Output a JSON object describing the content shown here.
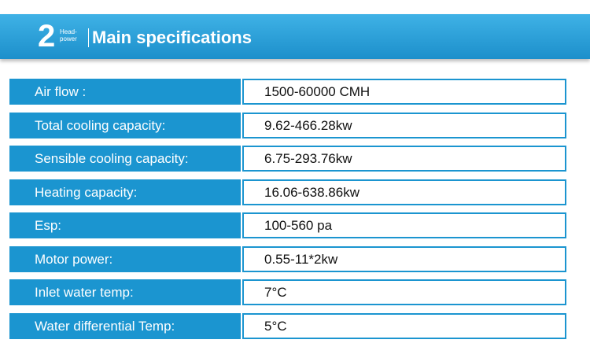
{
  "header": {
    "number": "2",
    "tag": [
      "Head-",
      "power"
    ],
    "title": "Main specifications"
  },
  "table": {
    "rows": [
      [
        "Air flow :",
        "1500-60000 CMH"
      ],
      [
        "Total cooling capacity:",
        "9.62-466.28kw"
      ],
      [
        "Sensible cooling capacity:",
        "6.75-293.76kw"
      ],
      [
        "Heating capacity:",
        "16.06-638.86kw"
      ],
      [
        "Esp:",
        "100-560 pa"
      ],
      [
        "Motor power:",
        "0.55-11*2kw"
      ],
      [
        "Inlet water temp:",
        "7°C"
      ],
      [
        "Water differential Temp:",
        "5°C"
      ]
    ]
  }
}
